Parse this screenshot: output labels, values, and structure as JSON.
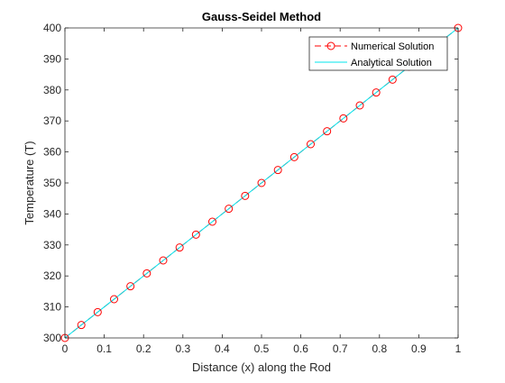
{
  "chart_data": {
    "type": "line",
    "title": "Gauss-Seidel Method",
    "xlabel": "Distance (x) along the Rod",
    "ylabel": "Temperature (T)",
    "xlim": [
      0,
      1
    ],
    "ylim": [
      300,
      400
    ],
    "x_ticks": [
      0,
      0.1,
      0.2,
      0.3,
      0.4,
      0.5,
      0.6,
      0.7,
      0.8,
      0.9,
      1
    ],
    "x_tick_labels": [
      "0",
      "0.1",
      "0.2",
      "0.3",
      "0.4",
      "0.5",
      "0.6",
      "0.7",
      "0.8",
      "0.9",
      "1"
    ],
    "y_ticks": [
      300,
      310,
      320,
      330,
      340,
      350,
      360,
      370,
      380,
      390,
      400
    ],
    "y_tick_labels": [
      "300",
      "310",
      "320",
      "330",
      "340",
      "350",
      "360",
      "370",
      "380",
      "390",
      "400"
    ],
    "grid": false,
    "legend_position": "top-right",
    "series": [
      {
        "name": "Numerical Solution",
        "style": "dashed line with circle markers",
        "color": "#ff0000",
        "x": [
          0,
          0.0417,
          0.0833,
          0.125,
          0.1667,
          0.2083,
          0.25,
          0.2917,
          0.3333,
          0.375,
          0.4167,
          0.4583,
          0.5,
          0.5417,
          0.5833,
          0.625,
          0.6667,
          0.7083,
          0.75,
          0.7917,
          0.8333,
          0.875,
          0.9167,
          0.9583,
          1
        ],
        "y": [
          300,
          304.17,
          308.33,
          312.5,
          316.67,
          320.83,
          325,
          329.17,
          333.33,
          337.5,
          341.67,
          345.83,
          350,
          354.17,
          358.33,
          362.5,
          366.67,
          370.83,
          375,
          379.17,
          383.33,
          387.5,
          391.67,
          395.83,
          400
        ]
      },
      {
        "name": "Analytical Solution",
        "style": "solid line",
        "color": "#00e5ee",
        "x": [
          0,
          1
        ],
        "y": [
          300,
          400
        ]
      }
    ]
  }
}
